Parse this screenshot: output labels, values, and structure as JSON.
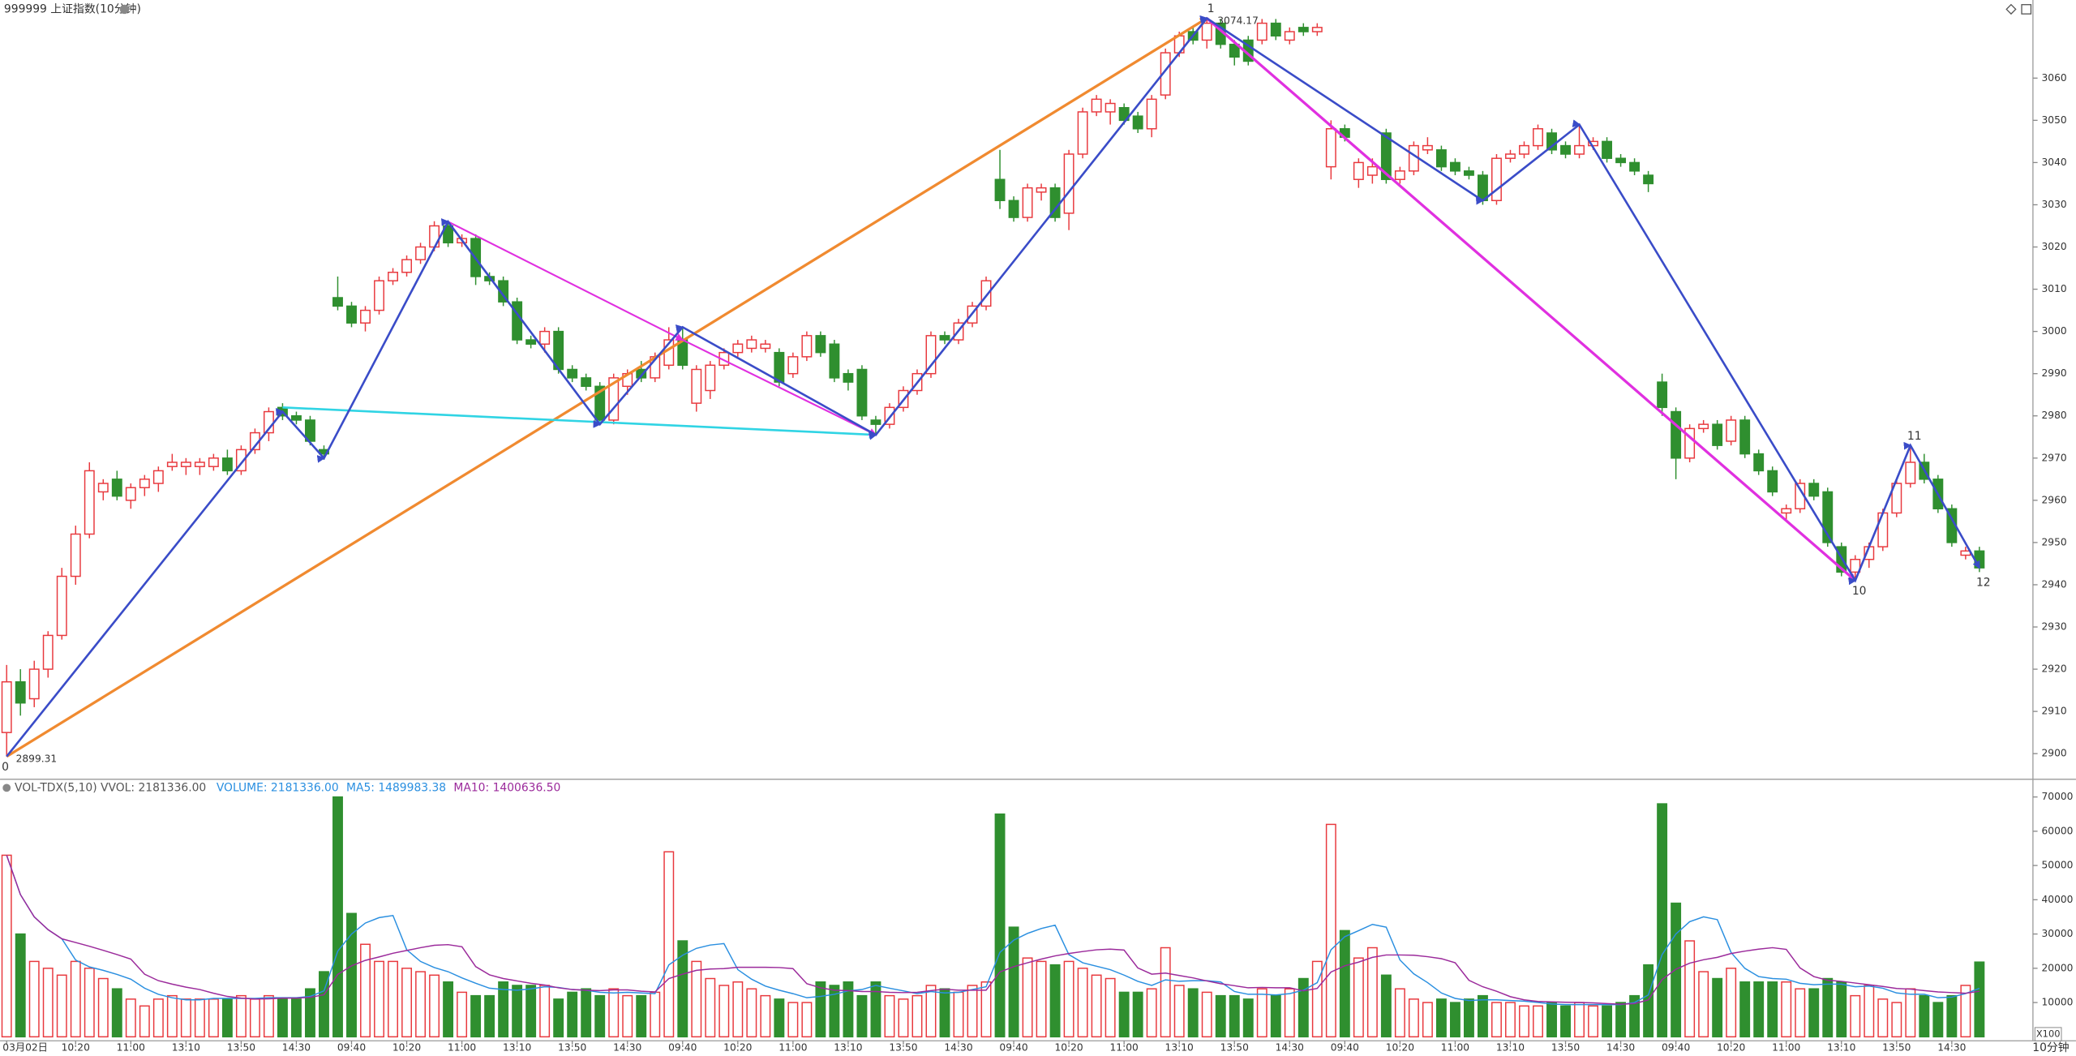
{
  "chart_data": [
    {
      "type": "candlestick",
      "title": "999999 上证指数(10分钟)",
      "up_color": "#e8383d",
      "down_color": "#2f8f2f",
      "ylim": [
        2894.4,
        3078.5
      ],
      "yticks": [
        2900,
        2910,
        2920,
        2930,
        2940,
        2950,
        2960,
        2970,
        2980,
        2990,
        3000,
        3010,
        3020,
        3030,
        3040,
        3050,
        3060
      ],
      "ohlc": [
        [
          2905,
          2921,
          2899.31,
          2917
        ],
        [
          2917,
          2920,
          2909,
          2912
        ],
        [
          2913,
          2922,
          2911,
          2920
        ],
        [
          2920,
          2929,
          2918,
          2928
        ],
        [
          2928,
          2944,
          2927,
          2942
        ],
        [
          2942,
          2954,
          2940,
          2952
        ],
        [
          2952,
          2969,
          2951,
          2967
        ],
        [
          2962,
          2965,
          2960,
          2964
        ],
        [
          2965,
          2967,
          2960,
          2961
        ],
        [
          2960,
          2964,
          2958,
          2963
        ],
        [
          2963,
          2966,
          2961,
          2965
        ],
        [
          2964,
          2968,
          2962,
          2967
        ],
        [
          2968,
          2971,
          2967,
          2969
        ],
        [
          2968,
          2970,
          2966,
          2969
        ],
        [
          2968,
          2970,
          2966,
          2969
        ],
        [
          2968,
          2971,
          2967,
          2970
        ],
        [
          2970,
          2972,
          2966,
          2967
        ],
        [
          2967,
          2973,
          2966,
          2972
        ],
        [
          2972,
          2977,
          2971,
          2976
        ],
        [
          2976,
          2982,
          2974,
          2981
        ],
        [
          2982,
          2983,
          2979,
          2980
        ],
        [
          2980,
          2981,
          2978,
          2979
        ],
        [
          2979,
          2980,
          2973,
          2974
        ],
        [
          2972,
          2973,
          2969.6,
          2971
        ],
        [
          3008,
          3013,
          3005,
          3006
        ],
        [
          3006,
          3007,
          3001,
          3002
        ],
        [
          3002,
          3006,
          3000,
          3005
        ],
        [
          3005,
          3013,
          3004,
          3012
        ],
        [
          3012,
          3015,
          3011,
          3014
        ],
        [
          3014,
          3018,
          3013,
          3017
        ],
        [
          3017,
          3021,
          3016,
          3020
        ],
        [
          3020,
          3026.1,
          3019,
          3025
        ],
        [
          3025,
          3026,
          3020,
          3021
        ],
        [
          3021,
          3023,
          3020,
          3022
        ],
        [
          3022,
          3023,
          3011,
          3013
        ],
        [
          3013,
          3014,
          3011,
          3012
        ],
        [
          3012,
          3013,
          3006,
          3007
        ],
        [
          3007,
          3008,
          2997,
          2998
        ],
        [
          2998,
          2999,
          2996,
          2997
        ],
        [
          2997,
          3001,
          2995,
          3000
        ],
        [
          3000,
          3001,
          2990,
          2991
        ],
        [
          2991,
          2992,
          2988,
          2989
        ],
        [
          2989,
          2990,
          2986,
          2987
        ],
        [
          2987,
          2988,
          2977.8,
          2979
        ],
        [
          2979,
          2990,
          2978,
          2989
        ],
        [
          2987,
          2991,
          2985,
          2990
        ],
        [
          2991,
          2993,
          2988,
          2989
        ],
        [
          2989,
          2995,
          2988,
          2994
        ],
        [
          2992,
          3001,
          2991,
          2998
        ],
        [
          2998,
          3001,
          2991,
          2992
        ],
        [
          2983,
          2992,
          2981,
          2991
        ],
        [
          2986,
          2993,
          2984,
          2992
        ],
        [
          2992,
          2996,
          2991,
          2995
        ],
        [
          2995,
          2998,
          2994,
          2997
        ],
        [
          2996,
          2999,
          2995,
          2998
        ],
        [
          2996,
          2998,
          2995,
          2997
        ],
        [
          2995,
          2996,
          2987,
          2988
        ],
        [
          2990,
          2995,
          2989,
          2994
        ],
        [
          2994,
          3000,
          2993,
          2999
        ],
        [
          2999,
          3000,
          2994,
          2995
        ],
        [
          2997,
          2998,
          2988,
          2989
        ],
        [
          2990,
          2991,
          2986,
          2988
        ],
        [
          2991,
          2992,
          2979,
          2980
        ],
        [
          2979,
          2980,
          2975.5,
          2978
        ],
        [
          2978,
          2983,
          2977,
          2982
        ],
        [
          2982,
          2987,
          2981,
          2986
        ],
        [
          2986,
          2991,
          2985,
          2990
        ],
        [
          2990,
          3000,
          2989,
          2999
        ],
        [
          2999,
          3000,
          2997,
          2998
        ],
        [
          2998,
          3003,
          2997,
          3002
        ],
        [
          3002,
          3007,
          3001,
          3006
        ],
        [
          3006,
          3013,
          3005,
          3012
        ],
        [
          3036,
          3043,
          3029,
          3031
        ],
        [
          3031,
          3032,
          3026,
          3027
        ],
        [
          3027,
          3035,
          3026,
          3034
        ],
        [
          3033,
          3035,
          3031,
          3034
        ],
        [
          3034,
          3035,
          3026,
          3027
        ],
        [
          3028,
          3043,
          3024,
          3042
        ],
        [
          3042,
          3053,
          3041,
          3052
        ],
        [
          3052,
          3056,
          3051,
          3055
        ],
        [
          3052,
          3055,
          3049,
          3054
        ],
        [
          3053,
          3054,
          3049,
          3050
        ],
        [
          3051,
          3052,
          3047,
          3048
        ],
        [
          3048,
          3056,
          3046,
          3055
        ],
        [
          3056,
          3067,
          3055,
          3066
        ],
        [
          3066,
          3071,
          3065,
          3070
        ],
        [
          3071,
          3072,
          3068,
          3069
        ],
        [
          3069,
          3074.17,
          3067,
          3073
        ],
        [
          3073,
          3074,
          3067,
          3068
        ],
        [
          3068,
          3069,
          3063,
          3065
        ],
        [
          3069,
          3070,
          3063,
          3064
        ],
        [
          3069,
          3074,
          3068,
          3073
        ],
        [
          3073,
          3074,
          3069,
          3070
        ],
        [
          3069,
          3072,
          3068,
          3071
        ],
        [
          3072,
          3073,
          3070,
          3071
        ],
        [
          3071,
          3073,
          3070,
          3072
        ],
        [
          3039,
          3050,
          3036,
          3048
        ],
        [
          3048,
          3049,
          3045,
          3046
        ],
        [
          3036,
          3041,
          3034,
          3040
        ],
        [
          3037,
          3041,
          3035,
          3039
        ],
        [
          3047,
          3048,
          3035,
          3036
        ],
        [
          3036,
          3039,
          3035,
          3038
        ],
        [
          3038,
          3045,
          3037,
          3044
        ],
        [
          3043,
          3046,
          3042,
          3044
        ],
        [
          3043,
          3044,
          3038,
          3039
        ],
        [
          3040,
          3041,
          3037,
          3038
        ],
        [
          3038,
          3039,
          3036,
          3037
        ],
        [
          3037,
          3038,
          3030,
          3031
        ],
        [
          3031,
          3042,
          3030,
          3041
        ],
        [
          3041,
          3043,
          3040,
          3042
        ],
        [
          3042,
          3045,
          3041,
          3044
        ],
        [
          3044,
          3049,
          3043,
          3048
        ],
        [
          3047,
          3048,
          3042,
          3043
        ],
        [
          3044,
          3045,
          3041,
          3042
        ],
        [
          3042,
          3049,
          3041,
          3044
        ],
        [
          3044,
          3046,
          3043,
          3045
        ],
        [
          3045,
          3046,
          3040,
          3041
        ],
        [
          3041,
          3042,
          3039,
          3040
        ],
        [
          3040,
          3041,
          3037,
          3038
        ],
        [
          3037,
          3038,
          3033,
          3035
        ],
        [
          2988,
          2990,
          2980,
          2982
        ],
        [
          2981,
          2982,
          2965,
          2970
        ],
        [
          2970,
          2978,
          2969,
          2977
        ],
        [
          2977,
          2979,
          2976,
          2978
        ],
        [
          2978,
          2979,
          2972,
          2973
        ],
        [
          2974,
          2980,
          2973,
          2979
        ],
        [
          2979,
          2980,
          2970,
          2971
        ],
        [
          2971,
          2972,
          2966,
          2967
        ],
        [
          2967,
          2968,
          2961,
          2962
        ],
        [
          2957,
          2959,
          2955,
          2958
        ],
        [
          2958,
          2965,
          2957,
          2964
        ],
        [
          2964,
          2965,
          2960,
          2961
        ],
        [
          2962,
          2963,
          2949,
          2950
        ],
        [
          2949,
          2950,
          2942,
          2943
        ],
        [
          2943,
          2947,
          2941,
          2946
        ],
        [
          2946,
          2950,
          2944,
          2949
        ],
        [
          2949,
          2958,
          2948,
          2957
        ],
        [
          2957,
          2965,
          2956,
          2964
        ],
        [
          2964,
          2973,
          2963,
          2969
        ],
        [
          2969,
          2971,
          2964,
          2965
        ],
        [
          2965,
          2966,
          2957,
          2958
        ],
        [
          2958,
          2959,
          2949,
          2950
        ],
        [
          2947,
          2949,
          2946,
          2948
        ],
        [
          2948,
          2949,
          2943,
          2944
        ]
      ],
      "wave_lines": [
        {
          "color": "#f08a30",
          "points": [
            [
              0,
              2899.31
            ],
            [
              87,
              3074.17
            ]
          ]
        },
        {
          "color": "#30d4e4",
          "points": [
            [
              20,
              2982
            ],
            [
              63,
              2975.5
            ]
          ]
        },
        {
          "color": "#e030e0",
          "points": [
            [
              32,
              3026
            ],
            [
              49,
              2998
            ],
            [
              63,
              2975.5
            ]
          ]
        },
        {
          "color": "#e030e0",
          "points": [
            [
              87,
              3074.17
            ],
            [
              134,
              2941
            ]
          ]
        },
        {
          "color": "#3a4cc8",
          "points": [
            [
              0,
              2899.31
            ],
            [
              20,
              2981
            ],
            [
              23,
              2970
            ],
            [
              32,
              3026
            ],
            [
              43,
              2978
            ],
            [
              49,
              3001
            ],
            [
              63,
              2975.5
            ],
            [
              87,
              3074.17
            ],
            [
              107,
              3031
            ],
            [
              114,
              3049
            ],
            [
              134,
              2941
            ],
            [
              138,
              2973
            ],
            [
              143,
              2944
            ]
          ]
        }
      ],
      "wave_labels": [
        "0",
        "1",
        "10",
        "11",
        "12"
      ],
      "low_price_label": 2899.31,
      "high_price_label": 3074.17
    },
    {
      "type": "bar",
      "header": "VOL-TDX(5,10) VVOL: 2181336.00",
      "ma_labels": [
        "VOLUME: 2181336.00",
        "MA5: 1489983.38",
        "MA10: 1400636.50"
      ],
      "ma_colors": [
        "#2a8fe0",
        "#2a8fe0",
        "#9b2a9b"
      ],
      "ma_periods": [
        5,
        10
      ],
      "unit": "X100",
      "period": "10分钟",
      "ylim": [
        0,
        71500
      ],
      "yticks": [
        10000,
        20000,
        30000,
        40000,
        50000,
        60000,
        70000
      ],
      "categories": [
        "03月02日",
        null,
        null,
        null,
        null,
        "10:20",
        null,
        null,
        null,
        "11:00",
        null,
        null,
        null,
        "13:10",
        null,
        null,
        null,
        "13:50",
        null,
        null,
        null,
        "14:30",
        null,
        null,
        null,
        "09:40",
        null,
        null,
        null,
        "10:20",
        null,
        null,
        null,
        "11:00",
        null,
        null,
        null,
        "13:10",
        null,
        null,
        null,
        "13:50",
        null,
        null,
        null,
        "14:30",
        null,
        null,
        null,
        "09:40",
        null,
        null,
        null,
        "10:20",
        null,
        null,
        null,
        "11:00",
        null,
        null,
        null,
        "13:10",
        null,
        null,
        null,
        "13:50",
        null,
        null,
        null,
        "14:30",
        null,
        null,
        null,
        "09:40",
        null,
        null,
        null,
        "10:20",
        null,
        null,
        null,
        "11:00",
        null,
        null,
        null,
        "13:10",
        null,
        null,
        null,
        "13:50",
        null,
        null,
        null,
        "14:30",
        null,
        null,
        null,
        "09:40",
        null,
        null,
        null,
        "10:20",
        null,
        null,
        null,
        "11:00",
        null,
        null,
        null,
        "13:10",
        null,
        null,
        null,
        "13:50",
        null,
        null,
        null,
        "14:30",
        null,
        null,
        null,
        "09:40",
        null,
        null,
        null,
        "10:20",
        null,
        null,
        null,
        "11:00",
        null,
        null,
        null,
        "13:10",
        null,
        null,
        null,
        "13:50",
        null,
        null,
        null,
        "14:30",
        null,
        null
      ],
      "values": [
        53000,
        30000,
        22000,
        20000,
        18000,
        22000,
        20000,
        17000,
        14000,
        11000,
        9000,
        11000,
        12000,
        11000,
        11000,
        11000,
        11000,
        12000,
        11000,
        12000,
        11000,
        11000,
        14000,
        19000,
        70000,
        36000,
        27000,
        22000,
        22000,
        20000,
        19000,
        18000,
        16000,
        13000,
        12000,
        12000,
        16000,
        15000,
        15000,
        15000,
        11000,
        13000,
        14000,
        12000,
        14000,
        12000,
        12000,
        13000,
        54000,
        28000,
        22000,
        17000,
        15000,
        16000,
        14000,
        12000,
        11000,
        10000,
        10000,
        16000,
        15000,
        16000,
        12000,
        16000,
        12000,
        11000,
        12000,
        15000,
        14000,
        13000,
        15000,
        16000,
        65000,
        32000,
        23000,
        22000,
        21000,
        22000,
        20000,
        18000,
        17000,
        13000,
        13000,
        14000,
        26000,
        15000,
        14000,
        13000,
        12000,
        12000,
        11000,
        14000,
        12000,
        14000,
        17000,
        22000,
        62000,
        31000,
        23000,
        26000,
        18000,
        14000,
        11000,
        10000,
        11000,
        10000,
        11000,
        12000,
        10000,
        10000,
        9000,
        9000,
        10000,
        9000,
        10000,
        9000,
        9000,
        10000,
        12000,
        21000,
        68000,
        39000,
        28000,
        19000,
        17000,
        20000,
        16000,
        16000,
        16000,
        16000,
        14000,
        14000,
        17000,
        16000,
        12000,
        15000,
        11000,
        10000,
        14000,
        12000,
        10000,
        12000,
        15000,
        21813
      ]
    }
  ]
}
